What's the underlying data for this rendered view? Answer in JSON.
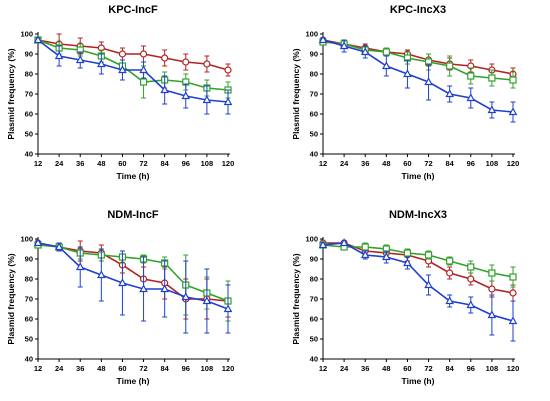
{
  "colors": {
    "red": "#b22222",
    "green": "#33a02c",
    "blue": "#1f3fcf"
  },
  "chart_data": [
    {
      "type": "line",
      "title": "KPC-IncF",
      "xlabel": "Time (h)",
      "ylabel": "Plasmid frequency (%)",
      "x": [
        12,
        24,
        36,
        48,
        60,
        72,
        84,
        96,
        108,
        120
      ],
      "ylim": [
        40,
        100
      ],
      "yticks": [
        40,
        50,
        60,
        70,
        80,
        90,
        100
      ],
      "series": [
        {
          "color": "red",
          "marker": "circle",
          "values": [
            97,
            95,
            94,
            93,
            90,
            90,
            88,
            86,
            85,
            82
          ],
          "err": [
            1,
            5,
            4,
            3,
            3,
            4,
            4,
            4,
            4,
            3
          ]
        },
        {
          "color": "green",
          "marker": "square",
          "values": [
            97,
            93,
            92,
            89,
            84,
            76,
            77,
            76,
            73,
            72
          ],
          "err": [
            1,
            3,
            3,
            3,
            3,
            8,
            4,
            4,
            4,
            4
          ]
        },
        {
          "color": "blue",
          "marker": "triangle",
          "values": [
            97,
            89,
            87,
            85,
            82,
            82,
            72,
            69,
            67,
            66
          ],
          "err": [
            1,
            5,
            4,
            5,
            5,
            4,
            7,
            6,
            7,
            6
          ]
        }
      ]
    },
    {
      "type": "line",
      "title": "KPC-IncX3",
      "xlabel": "Time (h)",
      "ylabel": "Plasmid frequency (%)",
      "x": [
        12,
        24,
        36,
        48,
        60,
        72,
        84,
        96,
        108,
        120
      ],
      "ylim": [
        40,
        100
      ],
      "yticks": [
        40,
        50,
        60,
        70,
        80,
        90,
        100
      ],
      "series": [
        {
          "color": "red",
          "marker": "circle",
          "values": [
            97,
            95,
            93,
            91,
            90,
            87,
            85,
            84,
            82,
            80
          ],
          "err": [
            1,
            2,
            2,
            2,
            2,
            3,
            3,
            3,
            3,
            3
          ]
        },
        {
          "color": "green",
          "marker": "square",
          "values": [
            96,
            95,
            92,
            91,
            88,
            86,
            84,
            79,
            78,
            77
          ],
          "err": [
            1,
            2,
            2,
            2,
            3,
            4,
            5,
            4,
            4,
            4
          ]
        },
        {
          "color": "blue",
          "marker": "triangle",
          "values": [
            97,
            94,
            91,
            84,
            80,
            76,
            70,
            68,
            62,
            61
          ],
          "err": [
            1,
            3,
            3,
            5,
            7,
            9,
            4,
            5,
            4,
            5
          ]
        }
      ]
    },
    {
      "type": "line",
      "title": "NDM-IncF",
      "xlabel": "Time (h)",
      "ylabel": "Plasmid frequency (%)",
      "x": [
        12,
        24,
        36,
        48,
        60,
        72,
        84,
        96,
        108,
        120
      ],
      "ylim": [
        40,
        100
      ],
      "yticks": [
        40,
        50,
        60,
        70,
        80,
        90,
        100
      ],
      "series": [
        {
          "color": "red",
          "marker": "circle",
          "values": [
            98,
            96,
            94,
            93,
            87,
            80,
            78,
            70,
            70,
            69
          ],
          "err": [
            1,
            2,
            5,
            4,
            4,
            6,
            8,
            10,
            10,
            8
          ]
        },
        {
          "color": "green",
          "marker": "square",
          "values": [
            97,
            96,
            93,
            92,
            91,
            90,
            88,
            77,
            73,
            69
          ],
          "err": [
            1,
            2,
            3,
            3,
            3,
            2,
            3,
            15,
            8,
            10
          ]
        },
        {
          "color": "blue",
          "marker": "triangle",
          "values": [
            98,
            96,
            86,
            82,
            78,
            75,
            75,
            71,
            69,
            65
          ],
          "err": [
            1,
            2,
            10,
            13,
            16,
            16,
            14,
            18,
            16,
            12
          ]
        }
      ]
    },
    {
      "type": "line",
      "title": "NDM-IncX3",
      "xlabel": "Time (h)",
      "ylabel": "Plasmid frequency (%)",
      "x": [
        12,
        24,
        36,
        48,
        60,
        72,
        84,
        96,
        108,
        120
      ],
      "ylim": [
        40,
        100
      ],
      "yticks": [
        40,
        50,
        60,
        70,
        80,
        90,
        100
      ],
      "series": [
        {
          "color": "red",
          "marker": "circle",
          "values": [
            98,
            98,
            94,
            93,
            92,
            89,
            83,
            80,
            75,
            73
          ],
          "err": [
            1,
            1,
            2,
            2,
            3,
            3,
            3,
            3,
            4,
            4
          ]
        },
        {
          "color": "green",
          "marker": "square",
          "values": [
            97,
            96,
            96,
            95,
            93,
            92,
            89,
            86,
            83,
            81
          ],
          "err": [
            1,
            1,
            2,
            2,
            2,
            2,
            2,
            3,
            4,
            5
          ]
        },
        {
          "color": "blue",
          "marker": "triangle",
          "values": [
            97,
            98,
            92,
            91,
            88,
            77,
            69,
            67,
            62,
            59
          ],
          "err": [
            1,
            1,
            2,
            3,
            3,
            5,
            3,
            4,
            10,
            10
          ]
        }
      ]
    }
  ]
}
